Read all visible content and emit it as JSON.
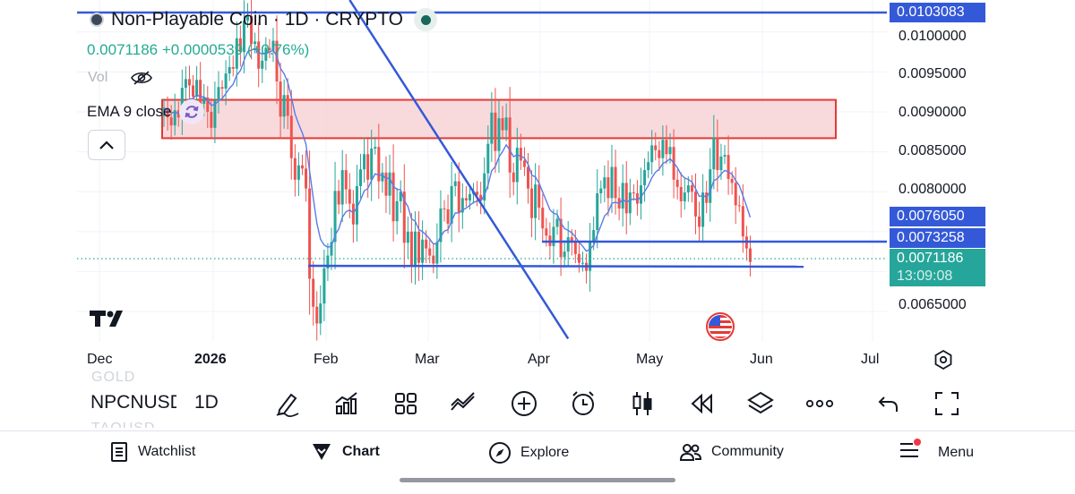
{
  "legend": {
    "symbol_title": "Non-Playable Coin · 1D · CRYPTO",
    "values": "0.0071186 +0.0000539 (+0.76%)",
    "vol_label": "Vol",
    "ema_label": "EMA 9 close"
  },
  "price_axis": {
    "labels": [
      "0.0100000",
      "0.0095000",
      "0.0090000",
      "0.0085000",
      "0.0080000",
      "0.0065000"
    ],
    "tags": {
      "top": "0.0103083",
      "ema": "0.0076050",
      "line": "0.0073258",
      "last": "0.0071186",
      "countdown": "13:09:08"
    }
  },
  "time_axis": {
    "labels": [
      "Dec",
      "2026",
      "Feb",
      "Mar",
      "Apr",
      "May",
      "Jun",
      "Jul"
    ]
  },
  "toolbar": {
    "ghost_above": "GOLD",
    "symbol": "NPCNUSD",
    "ghost_below": "TAOUSD",
    "interval": "1D"
  },
  "nav": {
    "watchlist": "Watchlist",
    "chart": "Chart",
    "explore": "Explore",
    "community": "Community",
    "menu": "Menu"
  },
  "colors": {
    "up": "#26a69a",
    "down": "#ef5350",
    "ema": "#5b7be6",
    "line": "#3459d8",
    "zone_fill": "#f7cdd0",
    "zone_border": "#e53935"
  },
  "chart_data": {
    "type": "candlestick",
    "symbol": "Non-Playable Coin",
    "interval": "1D",
    "exchange": "CRYPTO",
    "last_price": 0.0071186,
    "change": 5.39e-05,
    "change_percent": 0.76,
    "ema_period": 9,
    "ema_last": 0.007605,
    "y_range": [
      0.00612,
      0.0104
    ],
    "resistance_zone": [
      0.00867,
      0.00915
    ],
    "horizontal_lines": [
      0.0103083,
      0.0073258,
      0.007
    ],
    "trendline": [
      {
        "date": "2026-01-04",
        "price": 0.0104
      },
      {
        "date": "2026-03-05",
        "price": 0.00616
      }
    ],
    "closes": [
      0.00905,
      0.00893,
      0.00883,
      0.00902,
      0.00893,
      0.0093,
      0.00941,
      0.00933,
      0.00919,
      0.0094,
      0.0091,
      0.00918,
      0.009,
      0.0088,
      0.00914,
      0.00931,
      0.00929,
      0.00948,
      0.00956,
      0.00954,
      0.00992,
      0.00975,
      0.01014,
      0.0102,
      0.00985,
      0.00988,
      0.00954,
      0.00964,
      0.0098,
      0.00977,
      0.00989,
      0.00938,
      0.00894,
      0.00921,
      0.00895,
      0.00842,
      0.00815,
      0.00833,
      0.00829,
      0.00804,
      0.00691,
      0.00656,
      0.00635,
      0.0066,
      0.00704,
      0.0072,
      0.00737,
      0.00801,
      0.00784,
      0.00827,
      0.00803,
      0.00785,
      0.00759,
      0.00807,
      0.00828,
      0.00847,
      0.00815,
      0.00854,
      0.00856,
      0.00813,
      0.00824,
      0.00795,
      0.00824,
      0.00763,
      0.00788,
      0.008,
      0.00736,
      0.0075,
      0.00706,
      0.0075,
      0.00711,
      0.0074,
      0.00729,
      0.0072,
      0.0071,
      0.00737,
      0.00779,
      0.00778,
      0.0076,
      0.00807,
      0.00813,
      0.00774,
      0.00792,
      0.00789,
      0.00797,
      0.008,
      0.00796,
      0.00789,
      0.00823,
      0.0086,
      0.00899,
      0.00851,
      0.00892,
      0.00877,
      0.00893,
      0.00824,
      0.00812,
      0.00855,
      0.00839,
      0.00831,
      0.00804,
      0.00767,
      0.00809,
      0.0078,
      0.00754,
      0.00745,
      0.00732,
      0.00756,
      0.00766,
      0.00718,
      0.00725,
      0.00743,
      0.00737,
      0.00722,
      0.00711,
      0.00711,
      0.00701,
      0.00738,
      0.00752,
      0.00798,
      0.00804,
      0.00818,
      0.00792,
      0.00831,
      0.00792,
      0.00779,
      0.00811,
      0.00773,
      0.00799,
      0.00798,
      0.00785,
      0.00808,
      0.00827,
      0.00837,
      0.00858,
      0.00852,
      0.00842,
      0.00865,
      0.00847,
      0.00856,
      0.00815,
      0.00806,
      0.00788,
      0.00799,
      0.00808,
      0.008,
      0.00769,
      0.00756,
      0.00799,
      0.00786,
      0.00828,
      0.00868,
      0.00827,
      0.00844,
      0.00846,
      0.00816,
      0.00811,
      0.00783,
      0.00782,
      0.00744,
      0.00729,
      0.00712
    ]
  }
}
